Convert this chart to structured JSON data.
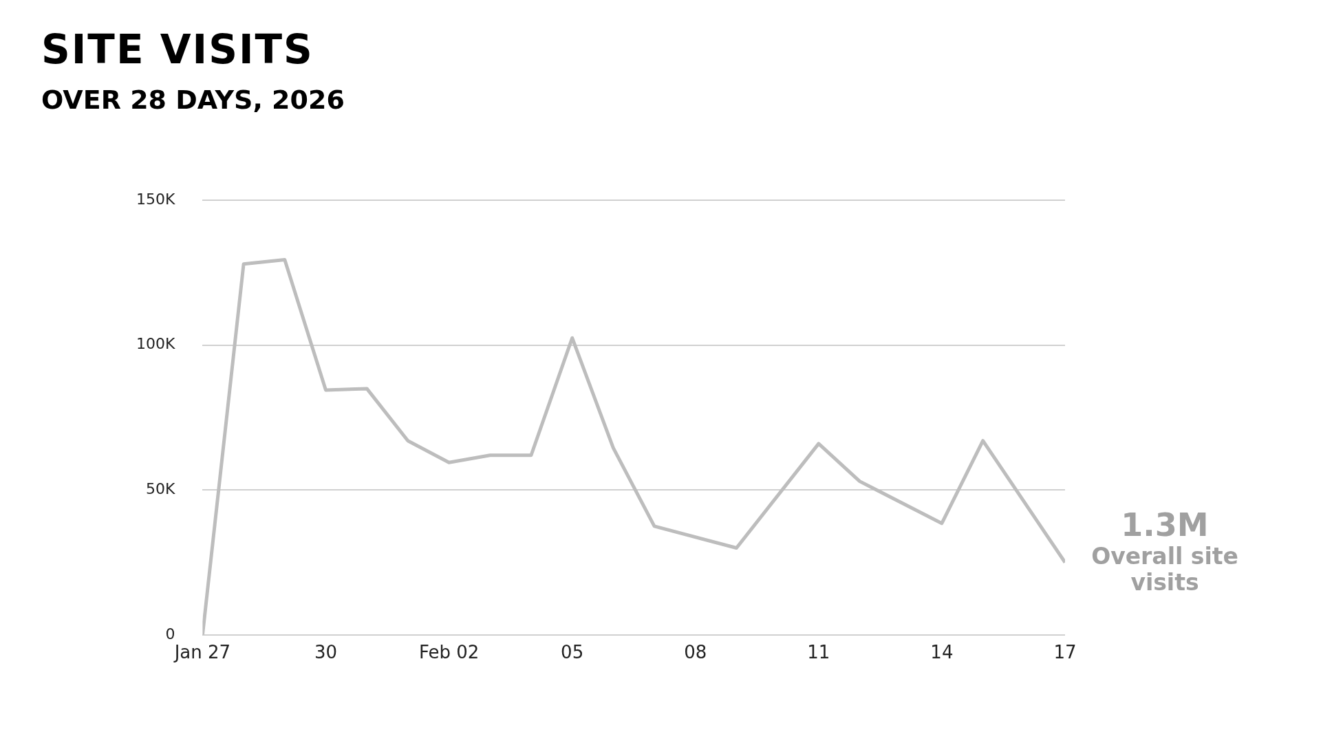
{
  "chart_data": {
    "type": "line",
    "title": "SITE VISITS",
    "subtitle": "OVER 28 DAYS, 2026",
    "x": [
      "2026-01-27",
      "2026-01-28",
      "2026-01-29",
      "2026-01-30",
      "2026-01-31",
      "2026-02-01",
      "2026-02-02",
      "2026-02-03",
      "2026-02-04",
      "2026-02-05",
      "2026-02-06",
      "2026-02-07",
      "2026-02-09",
      "2026-02-11",
      "2026-02-12",
      "2026-02-14",
      "2026-02-15",
      "2026-02-17"
    ],
    "series": [
      {
        "color": "#bdbdbd",
        "values": [
          0,
          128000,
          129500,
          84500,
          85000,
          67000,
          59500,
          62000,
          62000,
          102500,
          64500,
          37500,
          30000,
          66000,
          53000,
          38500,
          67000,
          25000
        ]
      }
    ],
    "xlim": [
      "2026-01-27",
      "2026-02-17"
    ],
    "xticks": [
      {
        "value": "2026-01-27",
        "label": "Jan 27"
      },
      {
        "value": "2026-01-30",
        "label": "30"
      },
      {
        "value": "2026-02-02",
        "label": "Feb 02"
      },
      {
        "value": "2026-02-05",
        "label": "05"
      },
      {
        "value": "2026-02-08",
        "label": "08"
      },
      {
        "value": "2026-02-11",
        "label": "11"
      },
      {
        "value": "2026-02-14",
        "label": "14"
      },
      {
        "value": "2026-02-17",
        "label": "17"
      }
    ],
    "ylim": [
      0,
      150000
    ],
    "yticks": [
      {
        "value": 0,
        "label": "0"
      },
      {
        "value": 50000,
        "label": "50K"
      },
      {
        "value": 100000,
        "label": "100K"
      },
      {
        "value": 150000,
        "label": "150K"
      }
    ],
    "grid": "y",
    "legend": false,
    "marker": "none",
    "line_style": "solid",
    "annotations": [
      "1.3M",
      "Overall site visits"
    ]
  }
}
